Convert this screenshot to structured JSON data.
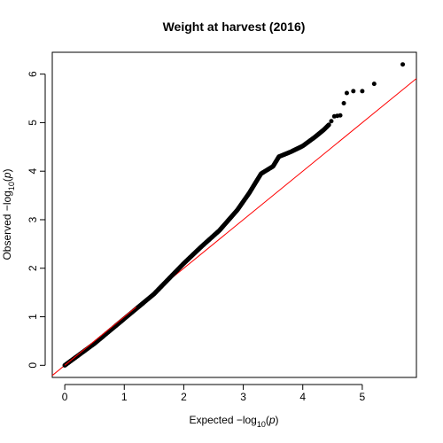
{
  "chart_data": {
    "type": "scatter",
    "title": "Weight at harvest (2016)",
    "xlabel": {
      "prefix": "Expected  −log",
      "base": "10",
      "open": "(",
      "var": "p",
      "close": ")"
    },
    "ylabel": {
      "prefix": "Observed  −log",
      "base": "10",
      "open": "(",
      "var": "p",
      "close": ")"
    },
    "xlim": [
      -0.21,
      5.91
    ],
    "ylim": [
      -0.25,
      6.45
    ],
    "xticks": [
      0,
      1,
      2,
      3,
      4,
      5
    ],
    "yticks": [
      0,
      1,
      2,
      3,
      4,
      5,
      6
    ],
    "xtick_labels": [
      "0",
      "1",
      "2",
      "3",
      "4",
      "5"
    ],
    "ytick_labels": [
      "0",
      "1",
      "2",
      "3",
      "4",
      "5",
      "6"
    ],
    "grid": false,
    "reference_line": {
      "slope": 1,
      "intercept": 0,
      "color": "#ff0000"
    },
    "point_color": "#000000",
    "outliers": [
      {
        "x": 4.48,
        "y": 5.03
      },
      {
        "x": 4.53,
        "y": 5.13
      },
      {
        "x": 4.58,
        "y": 5.14
      },
      {
        "x": 4.63,
        "y": 5.15
      },
      {
        "x": 4.69,
        "y": 5.4
      },
      {
        "x": 4.74,
        "y": 5.61
      },
      {
        "x": 4.85,
        "y": 5.65
      },
      {
        "x": 5.0,
        "y": 5.65
      },
      {
        "x": 5.2,
        "y": 5.8
      },
      {
        "x": 5.68,
        "y": 6.2
      }
    ],
    "curve": [
      [
        0.0,
        0.0
      ],
      [
        0.5,
        0.45
      ],
      [
        1.0,
        0.96
      ],
      [
        1.5,
        1.47
      ],
      [
        2.0,
        2.1
      ],
      [
        2.3,
        2.45
      ],
      [
        2.6,
        2.78
      ],
      [
        2.9,
        3.2
      ],
      [
        3.1,
        3.55
      ],
      [
        3.3,
        3.95
      ],
      [
        3.5,
        4.1
      ],
      [
        3.6,
        4.3
      ],
      [
        3.8,
        4.4
      ],
      [
        4.0,
        4.52
      ],
      [
        4.2,
        4.7
      ],
      [
        4.35,
        4.85
      ],
      [
        4.45,
        4.97
      ]
    ]
  }
}
